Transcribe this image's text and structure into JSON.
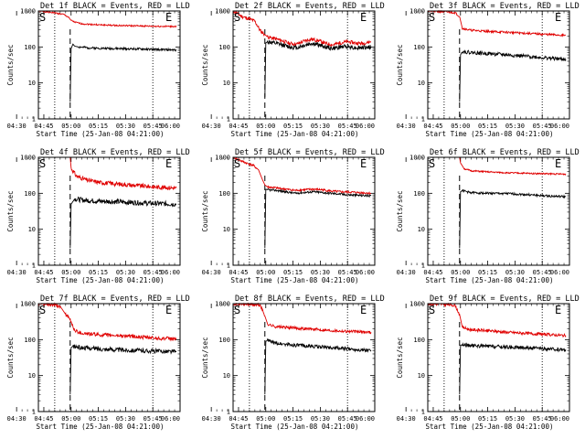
{
  "chart_data": [
    {
      "type": "line",
      "title": "Det 1f BLACK = Events, RED = LLD",
      "xlabel": "Start Time (25-Jan-08 04:21:00)",
      "ylabel": "Counts/sec",
      "xticks": [
        "04:30",
        "04:45",
        "05:00",
        "05:15",
        "05:30",
        "05:45",
        "06:00"
      ],
      "yticks": [
        "1",
        "10",
        "100",
        "1000"
      ],
      "ylim": [
        1,
        1000
      ],
      "yscale": "log",
      "xlim_min": [
        21,
        99
      ],
      "markers": {
        "S": 21,
        "E": 95
      },
      "series": [
        {
          "name": "LLD",
          "color": "#e00000",
          "x": [
            21,
            29,
            35,
            38,
            38.5,
            41,
            45,
            55,
            65,
            75,
            85,
            97
          ],
          "values": [
            1000,
            900,
            800,
            650,
            560,
            490,
            440,
            410,
            395,
            385,
            375,
            370
          ],
          "noise": 0.02
        },
        {
          "name": "Events",
          "color": "#000000",
          "x": [
            38.5,
            39,
            40,
            41,
            43,
            48,
            55,
            65,
            75,
            85,
            97
          ],
          "values": [
            3,
            90,
            120,
            105,
            100,
            95,
            92,
            90,
            88,
            85,
            82
          ],
          "noise": 0.03
        }
      ],
      "dotted_x": [
        30,
        84
      ],
      "dashed_x": [
        38.5
      ]
    },
    {
      "type": "line",
      "title": "Det 2f BLACK = Events, RED = LLD",
      "xlabel": "Start Time (25-Jan-08 04:21:00)",
      "ylabel": "Counts/sec",
      "xticks": [
        "04:30",
        "04:45",
        "05:00",
        "05:15",
        "05:30",
        "05:45",
        "06:00"
      ],
      "yticks": [
        "1",
        "10",
        "100",
        "1000"
      ],
      "ylim": [
        1,
        1000
      ],
      "yscale": "log",
      "markers": {
        "S": 21,
        "E": 95
      },
      "series": [
        {
          "name": "LLD",
          "color": "#e00000",
          "x": [
            21,
            26,
            30,
            33,
            36,
            38.5,
            40,
            44,
            48,
            52,
            56,
            60,
            64,
            68,
            72,
            76,
            80,
            84,
            88,
            92,
            97
          ],
          "values": [
            1000,
            700,
            600,
            520,
            280,
            220,
            190,
            170,
            150,
            125,
            120,
            145,
            165,
            150,
            125,
            115,
            130,
            140,
            130,
            125,
            140
          ],
          "noise": 0.05
        },
        {
          "name": "Events",
          "color": "#000000",
          "x": [
            38.5,
            39,
            40,
            44,
            48,
            52,
            56,
            60,
            64,
            68,
            72,
            76,
            80,
            84,
            88,
            92,
            97
          ],
          "values": [
            4,
            130,
            140,
            125,
            115,
            100,
            95,
            110,
            125,
            115,
            100,
            90,
            100,
            105,
            95,
            95,
            100
          ],
          "noise": 0.06
        }
      ],
      "dotted_x": [
        30,
        84
      ],
      "dashed_x": [
        38.5
      ]
    },
    {
      "type": "line",
      "title": "Det 3f BLACK = Events, RED = LLD",
      "xlabel": "Start Time (25-Jan-08 04:21:00)",
      "ylabel": "Counts/sec",
      "xticks": [
        "04:30",
        "04:45",
        "05:00",
        "05:15",
        "05:30",
        "05:45",
        "06:00"
      ],
      "yticks": [
        "1",
        "10",
        "100",
        "1000"
      ],
      "ylim": [
        1,
        1000
      ],
      "yscale": "log",
      "markers": {
        "S": 21,
        "E": 95
      },
      "series": [
        {
          "name": "LLD",
          "color": "#e00000",
          "x": [
            21,
            30,
            36,
            38.5,
            40,
            45,
            55,
            65,
            75,
            85,
            97
          ],
          "values": [
            1000,
            950,
            900,
            700,
            330,
            290,
            270,
            255,
            240,
            225,
            210
          ],
          "noise": 0.03
        },
        {
          "name": "Events",
          "color": "#000000",
          "x": [
            38.5,
            39,
            40,
            45,
            55,
            65,
            75,
            85,
            97
          ],
          "values": [
            3,
            60,
            75,
            70,
            65,
            60,
            55,
            50,
            45
          ],
          "noise": 0.05
        }
      ],
      "dotted_x": [
        30,
        84
      ],
      "dashed_x": [
        38.5
      ]
    },
    {
      "type": "line",
      "title": "Det 4f BLACK = Events, RED = LLD",
      "xlabel": "Start Time (25-Jan-08 04:21:00)",
      "ylabel": "Counts/sec",
      "xticks": [
        "04:30",
        "04:45",
        "05:00",
        "05:15",
        "05:30",
        "05:45",
        "06:00"
      ],
      "yticks": [
        "1",
        "10",
        "100",
        "1000"
      ],
      "ylim": [
        1,
        1000
      ],
      "yscale": "log",
      "markers": {
        "S": 21,
        "E": 95
      },
      "series": [
        {
          "name": "LLD",
          "color": "#e00000",
          "x": [
            38.5,
            39,
            42,
            48,
            55,
            65,
            75,
            85,
            97
          ],
          "values": [
            1000,
            500,
            300,
            230,
            200,
            180,
            165,
            150,
            140
          ],
          "noise": 0.06
        },
        {
          "name": "Events",
          "color": "#000000",
          "x": [
            38.5,
            39,
            41,
            45,
            55,
            65,
            75,
            85,
            97
          ],
          "values": [
            3,
            50,
            70,
            65,
            60,
            58,
            55,
            52,
            50
          ],
          "noise": 0.07
        }
      ],
      "dotted_x": [
        30,
        84
      ],
      "dashed_x": [
        38.5
      ]
    },
    {
      "type": "line",
      "title": "Det 5f BLACK = Events, RED = LLD",
      "xlabel": "Start Time (25-Jan-08 04:21:00)",
      "ylabel": "Counts/sec",
      "xticks": [
        "04:30",
        "04:45",
        "05:00",
        "05:15",
        "05:30",
        "05:45",
        "06:00"
      ],
      "yticks": [
        "1",
        "10",
        "100",
        "1000"
      ],
      "ylim": [
        1,
        1000
      ],
      "yscale": "log",
      "markers": {
        "S": 21,
        "E": 95
      },
      "series": [
        {
          "name": "LLD",
          "color": "#e00000",
          "x": [
            21,
            28,
            32,
            35,
            37,
            38.5,
            40,
            45,
            50,
            55,
            60,
            65,
            70,
            75,
            80,
            85,
            90,
            97
          ],
          "values": [
            1000,
            700,
            600,
            450,
            250,
            170,
            150,
            140,
            130,
            120,
            125,
            130,
            125,
            115,
            110,
            108,
            105,
            100
          ],
          "noise": 0.03
        },
        {
          "name": "Events",
          "color": "#000000",
          "x": [
            38.5,
            39,
            40,
            45,
            50,
            55,
            60,
            65,
            70,
            75,
            80,
            85,
            90,
            97
          ],
          "values": [
            3,
            130,
            125,
            120,
            110,
            100,
            105,
            110,
            105,
            100,
            95,
            90,
            88,
            85
          ],
          "noise": 0.03
        }
      ],
      "dotted_x": [
        30,
        84
      ],
      "dashed_x": [
        38.5
      ]
    },
    {
      "type": "line",
      "title": "Det 6f BLACK = Events, RED = LLD",
      "xlabel": "Start Time (25-Jan-08 04:21:00)",
      "ylabel": "Counts/sec",
      "xticks": [
        "04:30",
        "04:45",
        "05:00",
        "05:15",
        "05:30",
        "05:45",
        "06:00"
      ],
      "yticks": [
        "1",
        "10",
        "100",
        "1000"
      ],
      "ylim": [
        1,
        1000
      ],
      "yscale": "log",
      "markers": {
        "S": 21,
        "E": 95
      },
      "series": [
        {
          "name": "LLD",
          "color": "#e00000",
          "x": [
            38.5,
            39,
            41,
            45,
            55,
            65,
            75,
            85,
            97
          ],
          "values": [
            1000,
            700,
            480,
            420,
            390,
            370,
            360,
            350,
            340
          ],
          "noise": 0.02
        },
        {
          "name": "Events",
          "color": "#000000",
          "x": [
            38.5,
            39,
            40,
            44,
            55,
            65,
            75,
            85,
            97
          ],
          "values": [
            3,
            110,
            120,
            105,
            100,
            98,
            92,
            85,
            80
          ],
          "noise": 0.03
        }
      ],
      "dotted_x": [
        30,
        84
      ],
      "dashed_x": [
        38.5
      ]
    },
    {
      "type": "line",
      "title": "Det 7f BLACK = Events, RED = LLD",
      "xlabel": "Start Time (25-Jan-08 04:21:00)",
      "ylabel": "Counts/sec",
      "xticks": [
        "04:30",
        "04:45",
        "05:00",
        "05:15",
        "05:30",
        "05:45",
        "06:00"
      ],
      "yticks": [
        "1",
        "10",
        "100",
        "1000"
      ],
      "ylim": [
        1,
        1000
      ],
      "yscale": "log",
      "markers": {
        "S": 21,
        "E": 95
      },
      "series": [
        {
          "name": "LLD",
          "color": "#e00000",
          "x": [
            21,
            26,
            30,
            33,
            35,
            36,
            38.5,
            41,
            45,
            55,
            65,
            75,
            85,
            97
          ],
          "values": [
            1000,
            950,
            900,
            850,
            600,
            500,
            350,
            180,
            150,
            135,
            130,
            120,
            110,
            105
          ],
          "noise": 0.05
        },
        {
          "name": "Events",
          "color": "#000000",
          "x": [
            38.5,
            39,
            40,
            44,
            55,
            65,
            75,
            85,
            97
          ],
          "values": [
            3,
            60,
            65,
            60,
            55,
            52,
            50,
            48,
            46
          ],
          "noise": 0.06
        }
      ],
      "dotted_x": [
        30,
        84
      ],
      "dashed_x": [
        38.5
      ]
    },
    {
      "type": "line",
      "title": "Det 8f BLACK = Events, RED = LLD",
      "xlabel": "Start Time (25-Jan-08 04:21:00)",
      "ylabel": "Counts/sec",
      "xticks": [
        "04:30",
        "04:45",
        "05:00",
        "05:15",
        "05:30",
        "05:45",
        "06:00"
      ],
      "yticks": [
        "1",
        "10",
        "100",
        "1000"
      ],
      "ylim": [
        1,
        1000
      ],
      "yscale": "log",
      "markers": {
        "S": 21,
        "E": 95
      },
      "series": [
        {
          "name": "LLD",
          "color": "#e00000",
          "x": [
            21,
            30,
            36,
            38.5,
            40,
            44,
            55,
            65,
            75,
            85,
            97
          ],
          "values": [
            1000,
            950,
            900,
            450,
            270,
            230,
            210,
            195,
            180,
            170,
            160
          ],
          "noise": 0.04
        },
        {
          "name": "Events",
          "color": "#000000",
          "x": [
            38.5,
            39,
            40,
            44,
            55,
            65,
            75,
            85,
            97
          ],
          "values": [
            3,
            90,
            95,
            80,
            70,
            65,
            60,
            55,
            50
          ],
          "noise": 0.05
        }
      ],
      "dotted_x": [
        30,
        84
      ],
      "dashed_x": [
        38.5
      ]
    },
    {
      "type": "line",
      "title": "Det 9f BLACK = Events, RED = LLD",
      "xlabel": "Start Time (25-Jan-08 04:21:00)",
      "ylabel": "Counts/sec",
      "xticks": [
        "04:30",
        "04:45",
        "05:00",
        "05:15",
        "05:30",
        "05:45",
        "06:00"
      ],
      "yticks": [
        "1",
        "10",
        "100",
        "1000"
      ],
      "ylim": [
        1,
        1000
      ],
      "yscale": "log",
      "markers": {
        "S": 21,
        "E": 95
      },
      "series": [
        {
          "name": "LLD",
          "color": "#e00000",
          "x": [
            21,
            30,
            36,
            38.5,
            40,
            44,
            55,
            65,
            75,
            85,
            97
          ],
          "values": [
            1000,
            950,
            900,
            500,
            220,
            190,
            175,
            160,
            150,
            140,
            130
          ],
          "noise": 0.04
        },
        {
          "name": "Events",
          "color": "#000000",
          "x": [
            38.5,
            39,
            40,
            44,
            55,
            65,
            75,
            85,
            97
          ],
          "values": [
            3,
            70,
            72,
            68,
            65,
            62,
            60,
            55,
            52
          ],
          "noise": 0.05
        }
      ],
      "dotted_x": [
        30,
        84
      ],
      "dashed_x": [
        38.5
      ]
    }
  ]
}
